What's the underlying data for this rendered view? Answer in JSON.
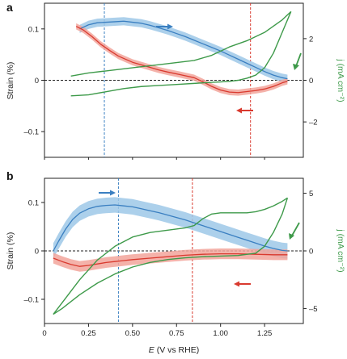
{
  "colors": {
    "blue": "#3a7fc1",
    "blue_band": "#9dc8e8",
    "red": "#d93a2f",
    "red_band": "#f2a59b",
    "green": "#3e9a4a",
    "axis": "#222222"
  },
  "chart_data": [
    {
      "type": "line",
      "panel_label": "a",
      "xlabel_italic": "E",
      "xlabel_rest": " (V vs RHE)",
      "ylabel": "Strain (%)",
      "y2label": "j (mA cm⁻²)",
      "xlim": [
        0.0,
        1.47
      ],
      "ylim": [
        -0.15,
        0.15
      ],
      "y2lim": [
        -3.7,
        3.7
      ],
      "yticks": [
        -0.1,
        0,
        0.1
      ],
      "ytick_labels": [
        "–0.1",
        "0",
        "0.1"
      ],
      "y2ticks": [
        -2,
        0,
        2
      ],
      "y2tick_labels": [
        "–2",
        "0",
        "2"
      ],
      "vlines": [
        {
          "x": 0.34,
          "color": "blue"
        },
        {
          "x": 1.17,
          "color": "red"
        }
      ],
      "series": [
        {
          "kind": "strain-anodic",
          "color": "blue",
          "x": [
            0.2,
            0.25,
            0.3,
            0.35,
            0.4,
            0.45,
            0.5,
            0.55,
            0.6,
            0.65,
            0.7,
            0.75,
            0.8,
            0.85,
            0.9,
            0.95,
            1.0,
            1.05,
            1.1,
            1.15,
            1.2,
            1.25,
            1.3,
            1.35,
            1.38
          ],
          "y": [
            0.1,
            0.108,
            0.112,
            0.113,
            0.114,
            0.115,
            0.113,
            0.111,
            0.107,
            0.102,
            0.097,
            0.091,
            0.085,
            0.078,
            0.071,
            0.064,
            0.057,
            0.049,
            0.041,
            0.033,
            0.025,
            0.017,
            0.01,
            0.005,
            0.003
          ],
          "band": 0.008
        },
        {
          "kind": "strain-cathodic",
          "color": "red",
          "x": [
            0.18,
            0.22,
            0.27,
            0.32,
            0.37,
            0.42,
            0.5,
            0.57,
            0.65,
            0.7,
            0.77,
            0.85,
            0.9,
            0.95,
            1.0,
            1.05,
            1.1,
            1.15,
            1.2,
            1.25,
            1.3,
            1.35,
            1.38
          ],
          "y": [
            0.105,
            0.098,
            0.085,
            0.07,
            0.058,
            0.047,
            0.035,
            0.028,
            0.02,
            0.016,
            0.011,
            0.005,
            -0.003,
            -0.012,
            -0.019,
            -0.023,
            -0.024,
            -0.022,
            -0.02,
            -0.017,
            -0.012,
            -0.005,
            -0.002
          ],
          "band": 0.006
        },
        {
          "kind": "cv-upper",
          "color": "green",
          "axis": "y2",
          "x": [
            0.15,
            0.25,
            0.35,
            0.45,
            0.55,
            0.65,
            0.75,
            0.85,
            0.95,
            1.05,
            1.15,
            1.25,
            1.3,
            1.35,
            1.4
          ],
          "y": [
            0.2,
            0.35,
            0.45,
            0.55,
            0.65,
            0.75,
            0.85,
            0.95,
            1.2,
            1.6,
            1.9,
            2.3,
            2.6,
            2.9,
            3.3
          ]
        },
        {
          "kind": "cv-lower",
          "color": "green",
          "axis": "y2",
          "x": [
            1.4,
            1.35,
            1.3,
            1.25,
            1.2,
            1.15,
            1.1,
            1.05,
            1.0,
            0.95,
            0.85,
            0.75,
            0.65,
            0.55,
            0.45,
            0.35,
            0.25,
            0.15
          ],
          "y": [
            3.3,
            2.3,
            1.3,
            0.6,
            0.25,
            0.1,
            0.0,
            -0.05,
            -0.08,
            -0.1,
            -0.15,
            -0.2,
            -0.25,
            -0.3,
            -0.4,
            -0.55,
            -0.7,
            -0.75
          ]
        }
      ]
    },
    {
      "type": "line",
      "panel_label": "b",
      "xlabel_italic": "E",
      "xlabel_rest": " (V vs RHE)",
      "ylabel": "Strain (%)",
      "y2label": "j (mA cm⁻²)",
      "xlim": [
        0.0,
        1.47
      ],
      "ylim": [
        -0.15,
        0.15
      ],
      "y2lim": [
        -6.3,
        6.3
      ],
      "xticks": [
        0,
        0.25,
        0.5,
        0.75,
        1.0,
        1.25
      ],
      "xtick_labels": [
        "0",
        "0.25",
        "0.50",
        "0.75",
        "1.00",
        "1.25"
      ],
      "yticks": [
        -0.1,
        0,
        0.1
      ],
      "ytick_labels": [
        "–0.1",
        "0",
        "0.1"
      ],
      "y2ticks": [
        -5,
        0,
        5
      ],
      "y2tick_labels": [
        "–5",
        "0",
        "5"
      ],
      "vlines": [
        {
          "x": 0.42,
          "color": "blue"
        },
        {
          "x": 0.84,
          "color": "red"
        }
      ],
      "series": [
        {
          "kind": "strain-anodic",
          "color": "blue",
          "x": [
            0.05,
            0.08,
            0.12,
            0.16,
            0.2,
            0.25,
            0.3,
            0.35,
            0.4,
            0.45,
            0.5,
            0.55,
            0.6,
            0.65,
            0.7,
            0.75,
            0.8,
            0.85,
            0.9,
            0.95,
            1.0,
            1.05,
            1.1,
            1.15,
            1.2,
            1.25,
            1.3,
            1.35,
            1.38
          ],
          "y": [
            0.0,
            0.02,
            0.045,
            0.065,
            0.078,
            0.087,
            0.092,
            0.094,
            0.095,
            0.093,
            0.091,
            0.087,
            0.083,
            0.079,
            0.074,
            0.069,
            0.064,
            0.058,
            0.052,
            0.046,
            0.04,
            0.034,
            0.028,
            0.022,
            0.016,
            0.01,
            0.005,
            0.001,
            0.0
          ],
          "band": 0.016
        },
        {
          "kind": "strain-cathodic",
          "color": "red",
          "x": [
            0.05,
            0.1,
            0.15,
            0.2,
            0.25,
            0.3,
            0.35,
            0.4,
            0.45,
            0.5,
            0.6,
            0.7,
            0.8,
            0.9,
            1.0,
            1.1,
            1.2,
            1.3,
            1.38
          ],
          "y": [
            -0.015,
            -0.022,
            -0.028,
            -0.032,
            -0.03,
            -0.027,
            -0.024,
            -0.022,
            -0.02,
            -0.018,
            -0.015,
            -0.012,
            -0.009,
            -0.007,
            -0.006,
            -0.006,
            -0.007,
            -0.008,
            -0.008
          ],
          "band": 0.011
        },
        {
          "kind": "cv-upper",
          "color": "green",
          "axis": "y2",
          "x": [
            0.05,
            0.1,
            0.2,
            0.3,
            0.4,
            0.5,
            0.6,
            0.7,
            0.8,
            0.85,
            0.9,
            0.95,
            1.0,
            1.05,
            1.1,
            1.15,
            1.2,
            1.25,
            1.3,
            1.35,
            1.38
          ],
          "y": [
            -5.5,
            -4.5,
            -2.5,
            -0.8,
            0.4,
            1.2,
            1.6,
            1.8,
            2.0,
            2.2,
            2.8,
            3.2,
            3.3,
            3.3,
            3.3,
            3.3,
            3.4,
            3.6,
            3.9,
            4.3,
            4.6
          ]
        },
        {
          "kind": "cv-lower",
          "color": "green",
          "axis": "y2",
          "x": [
            1.38,
            1.35,
            1.3,
            1.25,
            1.2,
            1.1,
            1.0,
            0.9,
            0.8,
            0.7,
            0.6,
            0.5,
            0.4,
            0.3,
            0.2,
            0.1,
            0.05
          ],
          "y": [
            4.6,
            3.2,
            1.6,
            0.4,
            -0.2,
            -0.4,
            -0.45,
            -0.5,
            -0.6,
            -0.75,
            -1.0,
            -1.4,
            -2.0,
            -2.8,
            -3.8,
            -5.0,
            -5.5
          ]
        }
      ]
    }
  ]
}
